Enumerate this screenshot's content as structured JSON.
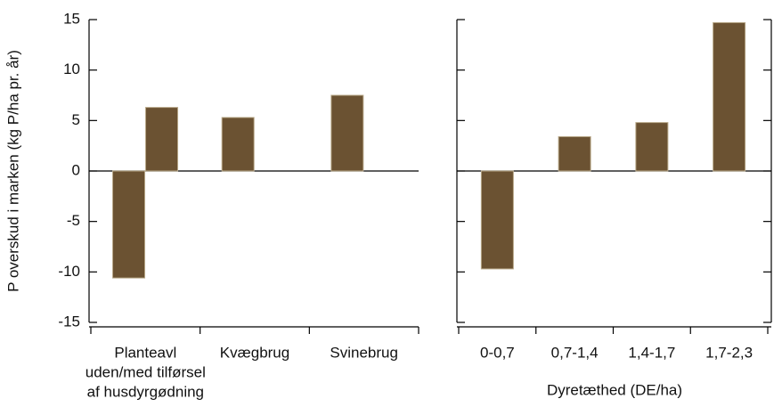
{
  "chart_data": [
    {
      "type": "bar",
      "ylabel": "P overskud i marken (kg P/ha pr. år)",
      "categories": [
        [
          "Planteavl",
          "uden/med tilførsel",
          "af husdyrgødning"
        ],
        [
          "Kvægbrug"
        ],
        [
          "Svinebrug"
        ]
      ],
      "series": [
        {
          "color": "#6b5232",
          "values": [
            -10.6,
            5.3,
            7.5
          ]
        },
        {
          "color": "#6b5232",
          "values": [
            6.3,
            null,
            null
          ]
        }
      ],
      "ylim": [
        -15,
        15
      ],
      "yticks": [
        -15,
        -10,
        -5,
        0,
        5,
        10,
        15
      ]
    },
    {
      "type": "bar",
      "xlabel": "Dyretæthed (DE/ha)",
      "categories": [
        [
          "0-0,7"
        ],
        [
          "0,7-1,4"
        ],
        [
          "1,4-1,7"
        ],
        [
          "1,7-2,3"
        ]
      ],
      "series": [
        {
          "color": "#6b5232",
          "values": [
            -9.7,
            3.4,
            4.8,
            14.7
          ]
        }
      ],
      "ylim": [
        -15,
        15
      ],
      "yticks": [
        -15,
        -10,
        -5,
        0,
        5,
        10,
        15
      ]
    }
  ]
}
